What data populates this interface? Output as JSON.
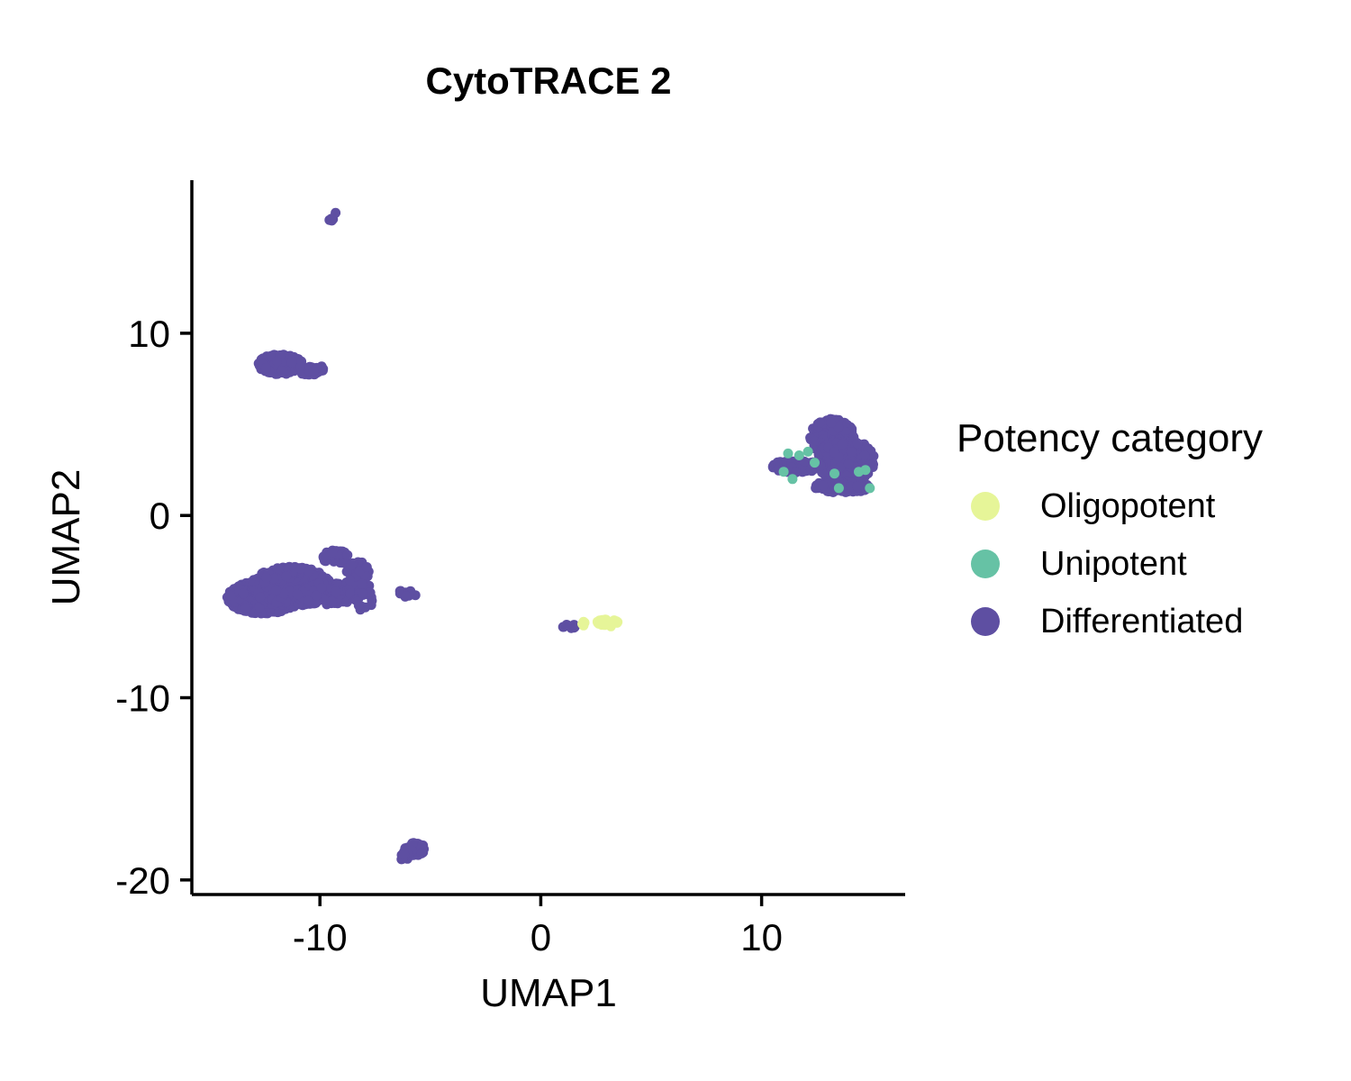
{
  "chart_data": {
    "type": "scatter",
    "title": "CytoTRACE 2",
    "xlabel": "UMAP1",
    "ylabel": "UMAP2",
    "xlim": [
      -15.8,
      16.5
    ],
    "ylim": [
      -20.8,
      18.4
    ],
    "xticks": [
      -10,
      0,
      10
    ],
    "yticks": [
      -20,
      -10,
      0,
      10
    ],
    "grid": false,
    "legend": {
      "title": "Potency category",
      "placement": "right",
      "entries": [
        {
          "name": "Oligopotent",
          "color": "#e6f598"
        },
        {
          "name": "Unipotent",
          "color": "#66c2a5"
        },
        {
          "name": "Differentiated",
          "color": "#5e4fa2"
        }
      ]
    },
    "series": [
      {
        "name": "Differentiated",
        "color": "#5e4fa2",
        "clusters": [
          {
            "cx": -9.4,
            "cy": 16.4,
            "rx": 0.25,
            "ry": 0.25,
            "n": 6
          },
          {
            "cx": -11.8,
            "cy": 8.3,
            "rx": 1.0,
            "ry": 0.55,
            "n": 140
          },
          {
            "cx": -10.4,
            "cy": 8.0,
            "rx": 0.6,
            "ry": 0.3,
            "n": 40
          },
          {
            "cx": -12.6,
            "cy": -4.5,
            "rx": 1.6,
            "ry": 0.9,
            "n": 650
          },
          {
            "cx": -11.3,
            "cy": -3.9,
            "rx": 1.8,
            "ry": 1.1,
            "n": 500
          },
          {
            "cx": -9.7,
            "cy": -4.3,
            "rx": 1.4,
            "ry": 0.6,
            "n": 220
          },
          {
            "cx": -9.3,
            "cy": -2.3,
            "rx": 0.6,
            "ry": 0.4,
            "n": 40
          },
          {
            "cx": -8.3,
            "cy": -3.5,
            "rx": 0.6,
            "ry": 1.0,
            "n": 45
          },
          {
            "cx": -8.0,
            "cy": -4.5,
            "rx": 0.4,
            "ry": 0.8,
            "n": 20
          },
          {
            "cx": -6.1,
            "cy": -4.3,
            "rx": 0.5,
            "ry": 0.2,
            "n": 12
          },
          {
            "cx": -5.7,
            "cy": -18.3,
            "rx": 0.45,
            "ry": 0.35,
            "n": 70
          },
          {
            "cx": -6.2,
            "cy": -18.7,
            "rx": 0.25,
            "ry": 0.25,
            "n": 12
          },
          {
            "cx": 1.3,
            "cy": -6.1,
            "rx": 0.3,
            "ry": 0.15,
            "n": 8
          },
          {
            "cx": 13.2,
            "cy": 4.3,
            "rx": 1.0,
            "ry": 1.0,
            "n": 330
          },
          {
            "cx": 13.8,
            "cy": 3.0,
            "rx": 1.3,
            "ry": 1.2,
            "n": 380
          },
          {
            "cx": 11.6,
            "cy": 2.7,
            "rx": 1.1,
            "ry": 0.35,
            "n": 130
          },
          {
            "cx": 13.7,
            "cy": 1.6,
            "rx": 1.3,
            "ry": 0.35,
            "n": 120
          }
        ]
      },
      {
        "name": "Unipotent",
        "color": "#66c2a5",
        "points": [
          [
            11.2,
            3.4
          ],
          [
            11.7,
            3.3
          ],
          [
            12.1,
            3.5
          ],
          [
            11.4,
            2.0
          ],
          [
            11.0,
            2.4
          ],
          [
            13.3,
            2.3
          ],
          [
            14.4,
            2.4
          ],
          [
            14.7,
            2.5
          ],
          [
            13.5,
            1.5
          ],
          [
            14.9,
            1.5
          ],
          [
            12.4,
            2.9
          ]
        ]
      },
      {
        "name": "Oligopotent",
        "color": "#e6f598",
        "clusters": [
          {
            "cx": 3.0,
            "cy": -5.9,
            "rx": 0.5,
            "ry": 0.2,
            "n": 35
          },
          {
            "cx": 1.9,
            "cy": -5.9,
            "rx": 0.15,
            "ry": 0.15,
            "n": 5
          }
        ]
      }
    ]
  }
}
